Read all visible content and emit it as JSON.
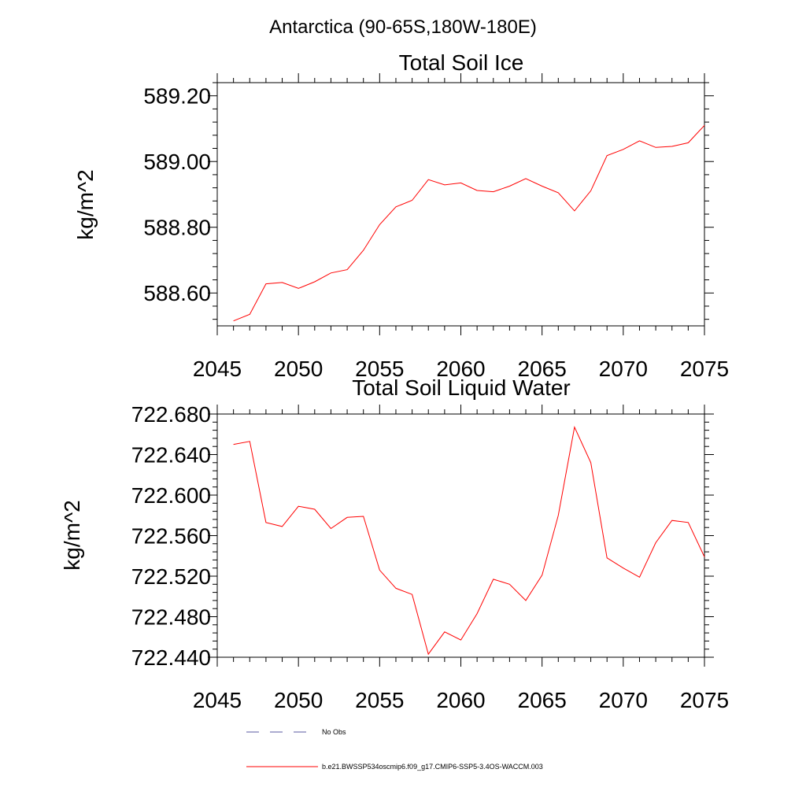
{
  "figure_title": "Antarctica (90-65S,180W-180E)",
  "chart_data": [
    {
      "type": "line",
      "title": "Total Soil Ice",
      "xlabel": "",
      "ylabel": "kg/m^2",
      "xlim": [
        2045,
        2075
      ],
      "ylim": [
        588.5,
        589.24
      ],
      "xticks": [
        2045,
        2050,
        2055,
        2060,
        2065,
        2070,
        2075
      ],
      "xtick_labels": [
        "2045",
        "2050",
        "2055",
        "2060",
        "2065",
        "2070",
        "2075"
      ],
      "yticks": [
        588.6,
        588.8,
        589.0,
        589.2
      ],
      "ytick_labels": [
        "588.60",
        "588.80",
        "589.00",
        "589.20"
      ],
      "series": [
        {
          "name": "b.e21.BWSSP534oscmip6.f09_g17.CMIP6-SSP5-3.4OS-WACCM.003",
          "color": "#ff0000",
          "x": [
            2046,
            2047,
            2048,
            2049,
            2050,
            2051,
            2052,
            2053,
            2054,
            2055,
            2056,
            2057,
            2058,
            2059,
            2060,
            2061,
            2062,
            2063,
            2064,
            2065,
            2066,
            2067,
            2068,
            2069,
            2070,
            2071,
            2072,
            2073,
            2074,
            2075
          ],
          "values": [
            588.515,
            588.535,
            588.628,
            588.632,
            588.614,
            588.634,
            588.661,
            588.671,
            588.73,
            588.808,
            588.862,
            588.882,
            588.945,
            588.929,
            588.935,
            588.912,
            588.908,
            588.925,
            588.948,
            588.925,
            588.905,
            588.85,
            588.911,
            589.018,
            589.037,
            589.063,
            589.043,
            589.046,
            589.057,
            589.11
          ]
        }
      ]
    },
    {
      "type": "line",
      "title": "Total Soil Liquid Water",
      "xlabel": "",
      "ylabel": "kg/m^2",
      "xlim": [
        2045,
        2075
      ],
      "ylim": [
        722.44,
        722.68
      ],
      "xticks": [
        2045,
        2050,
        2055,
        2060,
        2065,
        2070,
        2075
      ],
      "xtick_labels": [
        "2045",
        "2050",
        "2055",
        "2060",
        "2065",
        "2070",
        "2075"
      ],
      "yticks": [
        722.44,
        722.48,
        722.52,
        722.56,
        722.6,
        722.64,
        722.68
      ],
      "ytick_labels": [
        "722.440",
        "722.480",
        "722.520",
        "722.560",
        "722.600",
        "722.640",
        "722.680"
      ],
      "series": [
        {
          "name": "b.e21.BWSSP534oscmip6.f09_g17.CMIP6-SSP5-3.4OS-WACCM.003",
          "color": "#ff0000",
          "x": [
            2046,
            2047,
            2048,
            2049,
            2050,
            2051,
            2052,
            2053,
            2054,
            2055,
            2056,
            2057,
            2058,
            2059,
            2060,
            2061,
            2062,
            2063,
            2064,
            2065,
            2066,
            2067,
            2068,
            2069,
            2070,
            2071,
            2072,
            2073,
            2074,
            2075
          ],
          "values": [
            722.65,
            722.653,
            722.573,
            722.569,
            722.589,
            722.586,
            722.567,
            722.578,
            722.579,
            722.526,
            722.508,
            722.502,
            722.443,
            722.465,
            722.457,
            722.483,
            722.517,
            722.512,
            722.496,
            722.521,
            722.58,
            722.667,
            722.632,
            722.538,
            722.528,
            722.519,
            722.553,
            722.575,
            722.573,
            722.539
          ]
        }
      ]
    }
  ],
  "legend": [
    {
      "label": "No Obs",
      "style": "dashed",
      "color": "#5a5aa0"
    },
    {
      "label": "b.e21.BWSSP534oscmip6.f09_g17.CMIP6-SSP5-3.4OS-WACCM.003",
      "style": "solid",
      "color": "#ff0000"
    }
  ]
}
